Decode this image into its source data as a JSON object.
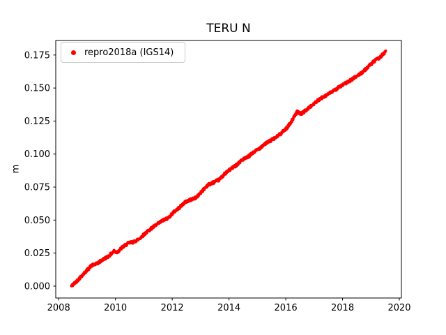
{
  "chart_data": {
    "type": "scatter",
    "title": "TERU N",
    "xlabel": "",
    "ylabel": "m",
    "xlim": [
      2007.897,
      2020.073
    ],
    "ylim": [
      -0.009,
      0.186
    ],
    "xticks": [
      2008,
      2010,
      2012,
      2014,
      2016,
      2018,
      2020
    ],
    "xticklabels": [
      "2008",
      "2010",
      "2012",
      "2014",
      "2016",
      "2018",
      "2020"
    ],
    "yticks": [
      0.0,
      0.025,
      0.05,
      0.075,
      0.1,
      0.125,
      0.15,
      0.175
    ],
    "yticklabels": [
      "0.000",
      "0.025",
      "0.050",
      "0.075",
      "0.100",
      "0.125",
      "0.150",
      "0.175"
    ],
    "grid": false,
    "axes_color": "#000000",
    "background_color": "#ffffff",
    "legend": {
      "position": "upper left",
      "entries": [
        {
          "label": "repro2018a (IGS14)",
          "color": "#ff0000",
          "marker": "dot"
        }
      ]
    },
    "series": [
      {
        "name": "repro2018a (IGS14)",
        "color": "#ff0000",
        "marker": "dot",
        "marker_radius_px": 2.0,
        "x_start": 2008.45,
        "x_end": 2019.52,
        "sample_step_years": 0.01,
        "noise_amplitude": 0.0009,
        "trend_description": "near-linear increase ~0.016 m/yr from 0.000 m at 2008.45 to 0.1775 m at 2019.52",
        "anchors": [
          [
            2008.45,
            0.0
          ],
          [
            2008.6,
            0.003
          ],
          [
            2008.8,
            0.0075
          ],
          [
            2009.0,
            0.012
          ],
          [
            2009.15,
            0.0155
          ],
          [
            2009.35,
            0.017
          ],
          [
            2009.55,
            0.02
          ],
          [
            2009.75,
            0.0225
          ],
          [
            2009.95,
            0.0265
          ],
          [
            2010.05,
            0.0255
          ],
          [
            2010.25,
            0.0295
          ],
          [
            2010.45,
            0.0325
          ],
          [
            2010.65,
            0.0335
          ],
          [
            2010.85,
            0.036
          ],
          [
            2011.05,
            0.04
          ],
          [
            2011.25,
            0.0435
          ],
          [
            2011.45,
            0.0465
          ],
          [
            2011.65,
            0.0495
          ],
          [
            2011.85,
            0.0515
          ],
          [
            2012.05,
            0.056
          ],
          [
            2012.25,
            0.0595
          ],
          [
            2012.45,
            0.0635
          ],
          [
            2012.65,
            0.0655
          ],
          [
            2012.85,
            0.067
          ],
          [
            2013.05,
            0.072
          ],
          [
            2013.25,
            0.0765
          ],
          [
            2013.45,
            0.0785
          ],
          [
            2013.65,
            0.0805
          ],
          [
            2013.85,
            0.085
          ],
          [
            2014.05,
            0.0885
          ],
          [
            2014.25,
            0.0915
          ],
          [
            2014.45,
            0.0955
          ],
          [
            2014.65,
            0.0975
          ],
          [
            2014.85,
            0.101
          ],
          [
            2015.05,
            0.104
          ],
          [
            2015.25,
            0.1075
          ],
          [
            2015.45,
            0.11
          ],
          [
            2015.65,
            0.1125
          ],
          [
            2015.85,
            0.116
          ],
          [
            2016.05,
            0.12
          ],
          [
            2016.25,
            0.1265
          ],
          [
            2016.4,
            0.132
          ],
          [
            2016.55,
            0.1305
          ],
          [
            2016.7,
            0.133
          ],
          [
            2016.9,
            0.1365
          ],
          [
            2017.1,
            0.14
          ],
          [
            2017.3,
            0.143
          ],
          [
            2017.5,
            0.1455
          ],
          [
            2017.7,
            0.148
          ],
          [
            2017.9,
            0.151
          ],
          [
            2018.1,
            0.1535
          ],
          [
            2018.3,
            0.156
          ],
          [
            2018.5,
            0.159
          ],
          [
            2018.7,
            0.162
          ],
          [
            2018.9,
            0.166
          ],
          [
            2019.1,
            0.17
          ],
          [
            2019.3,
            0.173
          ],
          [
            2019.45,
            0.176
          ],
          [
            2019.52,
            0.1775
          ]
        ]
      }
    ]
  }
}
